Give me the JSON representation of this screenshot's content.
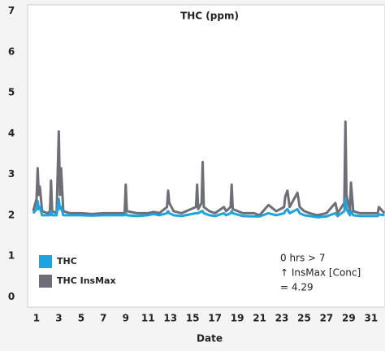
{
  "chart_data": {
    "type": "line",
    "title": "THC (ppm)",
    "x_label": "Date",
    "x": [
      0.7,
      1.0,
      1.1,
      1.2,
      1.3,
      1.5,
      2.0,
      2.2,
      2.3,
      2.4,
      2.8,
      3.0,
      3.1,
      3.2,
      3.4,
      4,
      5,
      6,
      7,
      8,
      8.9,
      9.0,
      9.1,
      10,
      11,
      11.5,
      12,
      12.7,
      12.8,
      12.9,
      13.3,
      14,
      15.3,
      15.4,
      15.5,
      15.8,
      15.9,
      16.0,
      16.5,
      17,
      17.8,
      18,
      18.4,
      18.5,
      18.6,
      19.5,
      20.5,
      21,
      21.8,
      22.5,
      23.2,
      23.3,
      23.5,
      23.7,
      24.4,
      24.6,
      25,
      25.5,
      26.2,
      27,
      27.8,
      28,
      28.6,
      28.7,
      28.8,
      29.1,
      29.2,
      29.4,
      30,
      31,
      31.6,
      31.7,
      32.2
    ],
    "series": [
      {
        "name": "THC InsMax",
        "color": "#6d6e76",
        "values": [
          2.1,
          2.4,
          3.15,
          2.5,
          2.7,
          2.1,
          2.05,
          2.1,
          2.85,
          2.1,
          2.05,
          4.05,
          2.5,
          3.15,
          2.1,
          2.05,
          2.05,
          2.03,
          2.05,
          2.05,
          2.05,
          2.75,
          2.1,
          2.05,
          2.05,
          2.08,
          2.05,
          2.2,
          2.6,
          2.3,
          2.1,
          2.05,
          2.2,
          2.75,
          2.15,
          2.3,
          3.3,
          2.2,
          2.1,
          2.05,
          2.2,
          2.1,
          2.2,
          2.75,
          2.15,
          2.05,
          2.05,
          2.0,
          2.25,
          2.1,
          2.2,
          2.45,
          2.6,
          2.2,
          2.55,
          2.2,
          2.1,
          2.05,
          2.0,
          2.05,
          2.3,
          2.05,
          2.3,
          4.29,
          2.5,
          2.1,
          2.8,
          2.1,
          2.05,
          2.05,
          2.05,
          2.2,
          2.05
        ]
      },
      {
        "name": "THC",
        "color": "#1ca3e0",
        "values": [
          2.05,
          2.15,
          2.35,
          2.15,
          2.2,
          2.0,
          2.0,
          2.0,
          2.1,
          2.0,
          2.0,
          2.4,
          2.15,
          2.2,
          2.0,
          2.0,
          2.0,
          1.99,
          2.0,
          2.0,
          2.0,
          2.05,
          2.0,
          1.98,
          2.0,
          2.03,
          2.0,
          2.05,
          2.1,
          2.05,
          2.0,
          1.98,
          2.05,
          2.05,
          2.05,
          2.1,
          2.1,
          2.05,
          2.0,
          1.98,
          2.05,
          2.0,
          2.05,
          2.1,
          2.05,
          1.98,
          1.97,
          1.97,
          2.05,
          2.0,
          2.05,
          2.1,
          2.15,
          2.05,
          2.15,
          2.05,
          2.0,
          1.98,
          1.95,
          1.97,
          2.05,
          1.98,
          2.1,
          2.4,
          2.15,
          2.0,
          2.1,
          2.0,
          1.98,
          1.98,
          1.98,
          2.02,
          2.0
        ]
      }
    ],
    "xlim": [
      0.2,
      32.25
    ],
    "xticks": [
      1,
      3,
      5,
      7,
      9,
      11,
      13,
      15,
      17,
      19,
      21,
      23,
      25,
      27,
      29,
      31
    ],
    "ylim": [
      -0.25,
      7.15
    ],
    "yticks": [
      0,
      1,
      2,
      3,
      4,
      5,
      6,
      7
    ],
    "legend": "bottom-left",
    "annotation": [
      "0 hrs > 7",
      "↑ InsMax [Conc]",
      "= 4.29"
    ]
  }
}
